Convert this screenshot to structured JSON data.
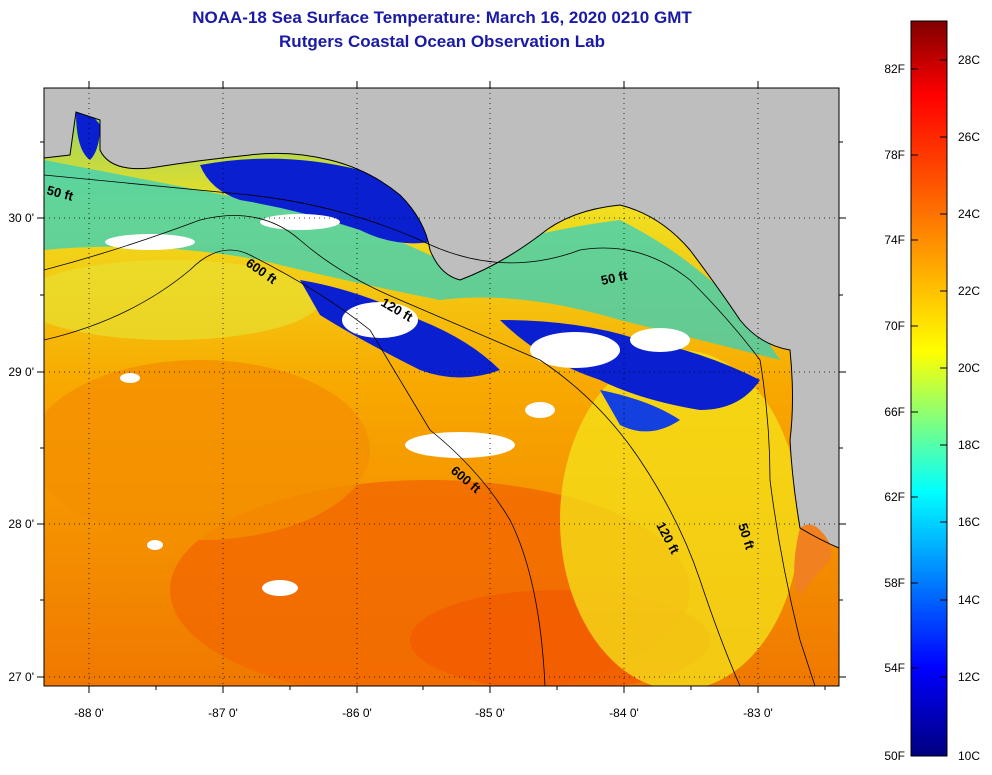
{
  "title": {
    "line1": "NOAA-18 Sea Surface Temperature:  March 16, 2020 0210 GMT",
    "line2": "Rutgers Coastal Ocean Observation Lab"
  },
  "colors": {
    "title": "#1a1aa6",
    "land": "#bebebe",
    "cloud": "#ffffff",
    "warm_sea": "#f5a000",
    "cold_sea": "#0a1fd0"
  },
  "map": {
    "lon_labels": [
      "-88 0'",
      "-87 0'",
      "-86 0'",
      "-85 0'",
      "-84 0'",
      "-83 0'"
    ],
    "lat_labels": [
      "30 0'",
      "29 0'",
      "28 0'",
      "27 0'"
    ],
    "contours": [
      {
        "label": "50 ft"
      },
      {
        "label": "600 ft"
      },
      {
        "label": "120 ft"
      },
      {
        "label": "50 ft"
      },
      {
        "label": "600 ft"
      },
      {
        "label": "120 ft"
      },
      {
        "label": "50 ft"
      }
    ]
  },
  "colorbar": {
    "f_labels": [
      "82F",
      "78F",
      "74F",
      "70F",
      "66F",
      "62F",
      "58F",
      "54F",
      "50F"
    ],
    "c_labels": [
      "28C",
      "26C",
      "24C",
      "22C",
      "20C",
      "18C",
      "16C",
      "14C",
      "12C",
      "10C"
    ]
  }
}
